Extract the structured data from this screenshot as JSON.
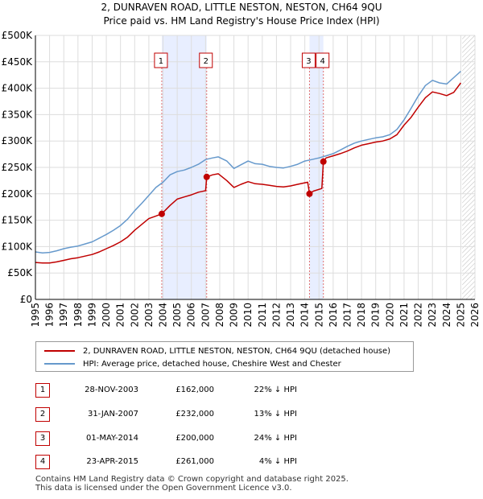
{
  "title_line1": "2, DUNRAVEN ROAD, LITTLE NESTON, NESTON, CH64 9QU",
  "title_line2": "Price paid vs. HM Land Registry's House Price Index (HPI)",
  "legend": {
    "property": "2, DUNRAVEN ROAD, LITTLE NESTON, NESTON, CH64 9QU (detached house)",
    "hpi": "HPI: Average price, detached house, Cheshire West and Chester"
  },
  "colors": {
    "property": "#c00000",
    "hpi": "#6699cc",
    "marker_line": "#e07070",
    "shade": "#e8eeff",
    "grid": "#dddddd"
  },
  "transactions": [
    {
      "num": "1",
      "date": "28-NOV-2003",
      "price": "£162,000",
      "hpi_diff": "22% ↓ HPI"
    },
    {
      "num": "2",
      "date": "31-JAN-2007",
      "price": "£232,000",
      "hpi_diff": "13% ↓ HPI"
    },
    {
      "num": "3",
      "date": "01-MAY-2014",
      "price": "£200,000",
      "hpi_diff": "24% ↓ HPI"
    },
    {
      "num": "4",
      "date": "23-APR-2015",
      "price": "£261,000",
      "hpi_diff": "4% ↓ HPI"
    }
  ],
  "footer_line1": "Contains HM Land Registry data © Crown copyright and database right 2025.",
  "footer_line2": "This data is licensed under the Open Government Licence v3.0.",
  "chart_data": {
    "type": "line",
    "title": "Price paid vs. HM Land Registry's House Price Index (HPI)",
    "xlim": [
      1995,
      2026
    ],
    "ylim": [
      0,
      500000
    ],
    "x_ticks": [
      "1995",
      "1996",
      "1997",
      "1998",
      "1999",
      "2000",
      "2001",
      "2002",
      "2003",
      "2004",
      "2005",
      "2006",
      "2007",
      "2008",
      "2009",
      "2010",
      "2011",
      "2012",
      "2013",
      "2014",
      "2015",
      "2016",
      "2017",
      "2018",
      "2019",
      "2020",
      "2021",
      "2022",
      "2023",
      "2024",
      "2025",
      "2026"
    ],
    "y_ticks": [
      {
        "value": 0,
        "label": "£0"
      },
      {
        "value": 50000,
        "label": "£50K"
      },
      {
        "value": 100000,
        "label": "£100K"
      },
      {
        "value": 150000,
        "label": "£150K"
      },
      {
        "value": 200000,
        "label": "£200K"
      },
      {
        "value": 250000,
        "label": "£250K"
      },
      {
        "value": 300000,
        "label": "£300K"
      },
      {
        "value": 350000,
        "label": "£350K"
      },
      {
        "value": 400000,
        "label": "£400K"
      },
      {
        "value": 450000,
        "label": "£450K"
      },
      {
        "value": 500000,
        "label": "£500K"
      }
    ],
    "shaded_ranges": [
      [
        2003.91,
        2007.08
      ],
      [
        2014.33,
        2015.31
      ]
    ],
    "future_hatch_from": 2025.1,
    "sale_markers": [
      {
        "label": "1",
        "x": 2003.91,
        "y": 162000
      },
      {
        "label": "2",
        "x": 2007.08,
        "y": 232000
      },
      {
        "label": "3",
        "x": 2014.33,
        "y": 200000
      },
      {
        "label": "4",
        "x": 2015.31,
        "y": 261000
      }
    ],
    "series": [
      {
        "name": "HPI: Average price, detached house, Cheshire West and Chester",
        "x": [
          1995,
          1995.5,
          1996,
          1996.5,
          1997,
          1997.5,
          1998,
          1998.5,
          1999,
          1999.5,
          2000,
          2000.5,
          2001,
          2001.5,
          2002,
          2002.5,
          2003,
          2003.5,
          2004,
          2004.5,
          2005,
          2005.5,
          2006,
          2006.5,
          2007,
          2007.5,
          2007.9,
          2008.5,
          2009,
          2009.5,
          2010,
          2010.5,
          2011,
          2011.5,
          2012,
          2012.5,
          2013,
          2013.5,
          2014,
          2014.5,
          2015,
          2015.5,
          2016,
          2016.5,
          2017,
          2017.5,
          2018,
          2018.5,
          2019,
          2019.5,
          2020,
          2020.5,
          2021,
          2021.5,
          2022,
          2022.5,
          2023,
          2023.5,
          2024,
          2024.5,
          2025
        ],
        "values": [
          90000,
          88000,
          89000,
          92000,
          96000,
          99000,
          101000,
          105000,
          109000,
          116000,
          123000,
          131000,
          140000,
          152000,
          168000,
          182000,
          197000,
          212000,
          222000,
          236000,
          242000,
          245000,
          250000,
          256000,
          265000,
          268000,
          270000,
          262000,
          248000,
          255000,
          262000,
          257000,
          256000,
          252000,
          250000,
          249000,
          252000,
          256000,
          262000,
          265000,
          268000,
          272000,
          276000,
          283000,
          290000,
          296000,
          300000,
          303000,
          306000,
          308000,
          312000,
          322000,
          340000,
          362000,
          385000,
          405000,
          415000,
          410000,
          408000,
          420000,
          432000
        ]
      },
      {
        "name": "2, DUNRAVEN ROAD, LITTLE NESTON, NESTON, CH64 9QU (detached house)",
        "x": [
          1995,
          1995.5,
          1996,
          1996.5,
          1997,
          1997.5,
          1998,
          1998.5,
          1999,
          1999.5,
          2000,
          2000.5,
          2001,
          2001.5,
          2002,
          2002.5,
          2003,
          2003.5,
          2003.91,
          2004.5,
          2005,
          2005.5,
          2006,
          2006.5,
          2007.0,
          2007.08,
          2007.5,
          2007.9,
          2008.5,
          2009,
          2009.5,
          2010,
          2010.5,
          2011,
          2011.5,
          2012,
          2012.5,
          2013,
          2013.5,
          2014.2,
          2014.33,
          2014.6,
          2015.2,
          2015.31,
          2015.5,
          2016,
          2016.5,
          2017,
          2017.5,
          2018,
          2018.5,
          2019,
          2019.5,
          2020,
          2020.5,
          2021,
          2021.5,
          2022,
          2022.5,
          2023,
          2023.5,
          2024,
          2024.5,
          2025
        ],
        "values": [
          70000,
          69000,
          69000,
          71000,
          74000,
          77000,
          79000,
          82000,
          85000,
          90000,
          96000,
          102000,
          109000,
          118000,
          131000,
          142000,
          153000,
          158000,
          162000,
          178000,
          190000,
          194000,
          198000,
          203000,
          206000,
          232000,
          236000,
          238000,
          225000,
          212000,
          218000,
          223000,
          219000,
          218000,
          216000,
          214000,
          213000,
          215000,
          218000,
          222000,
          200000,
          205000,
          210000,
          261000,
          268000,
          272000,
          276000,
          281000,
          287000,
          292000,
          295000,
          298000,
          300000,
          304000,
          312000,
          330000,
          345000,
          364000,
          382000,
          393000,
          390000,
          386000,
          392000,
          410000
        ]
      }
    ]
  }
}
